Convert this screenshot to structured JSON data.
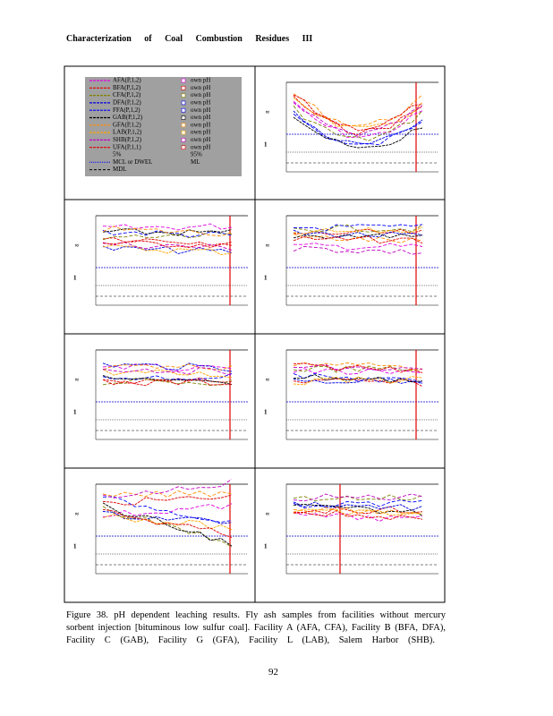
{
  "header": {
    "title": "Characterization of Coal Combustion Residues III"
  },
  "legend": {
    "left": [
      "AFA(P,1,2)",
      "BFA(P,1,2)",
      "CFA(P,1,2)",
      "DFA(P,1,2)",
      "FFA(P,1,2)",
      "GAB(P,1,2)",
      "GFA(P,1,2)",
      "LAB(P,1,2)",
      "SHB(P,1,2)",
      "UFA(P,1,1)",
      "5%",
      "MCL or DWEL",
      "MDL"
    ],
    "right": [
      "own pH",
      "own pH",
      "own pH",
      "own pH",
      "own pH",
      "own pH",
      "own pH",
      "own pH",
      "own pH",
      "own pH",
      "95%",
      "ML"
    ]
  },
  "caption": [
    "Figure 38. pH dependent leaching results. Fly ash samples from facilities without mercury",
    "sorbent injection [bituminous low sulfur coal]. Facility A (AFA, CFA), Facility B (BFA, DFA),",
    "Facility C (GAB), Facility G (GFA), Facility L (LAB), Salem Harbor (SHB)."
  ],
  "page_number": "92"
}
